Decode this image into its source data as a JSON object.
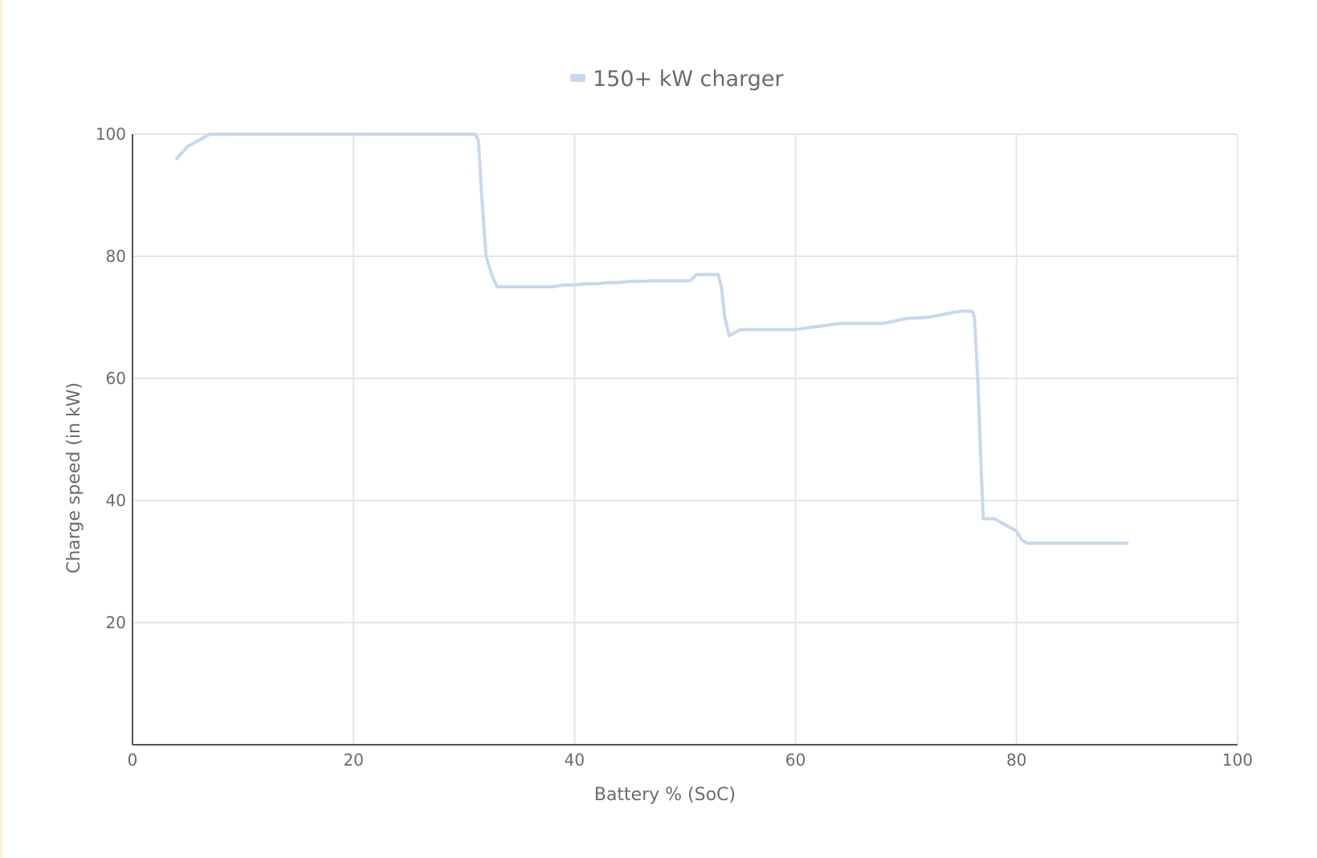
{
  "chart_data": {
    "type": "line",
    "xlabel": "Battery % (SoC)",
    "ylabel": "Charge speed (in kW)",
    "xlim": [
      0,
      100
    ],
    "ylim": [
      0,
      100
    ],
    "x_ticks": [
      0,
      20,
      40,
      60,
      80,
      100
    ],
    "y_ticks": [
      20,
      40,
      60,
      80,
      100
    ],
    "x_tick_labels": [
      "0",
      "20",
      "40",
      "60",
      "80",
      "100"
    ],
    "y_tick_labels": [
      "20",
      "40",
      "60",
      "80",
      "100"
    ],
    "grid": true,
    "legend_position": "top-center",
    "series": [
      {
        "name": "150+ kW charger",
        "color": "#c9d7ee",
        "x": [
          4,
          5,
          6,
          7,
          8,
          10,
          15,
          20,
          25,
          30,
          31,
          31.3,
          31.6,
          32,
          32.5,
          33,
          34,
          36,
          38,
          39,
          40,
          41,
          42,
          43,
          44,
          45,
          46,
          47,
          48,
          49,
          50,
          50.5,
          51,
          52,
          53,
          53.3,
          53.6,
          54,
          54.5,
          55,
          56,
          58,
          60,
          62,
          64,
          65,
          66,
          68,
          70,
          72,
          74,
          75,
          76,
          76.2,
          76.5,
          76.8,
          77,
          78,
          79,
          80,
          80.5,
          81,
          82,
          85,
          88,
          90
        ],
        "y": [
          96,
          98,
          99,
          100,
          100,
          100,
          100,
          100,
          100,
          100,
          100,
          99,
          90,
          80,
          77,
          75,
          75,
          75,
          75,
          75.3,
          75.3,
          75.5,
          75.5,
          75.7,
          75.7,
          75.9,
          75.9,
          76,
          76,
          76,
          76,
          76,
          77,
          77,
          77,
          75,
          70,
          67,
          67.5,
          68,
          68,
          68,
          68,
          68.5,
          69,
          69,
          69,
          69,
          69.8,
          70,
          70.7,
          71,
          71,
          70,
          60,
          45,
          37,
          37,
          36,
          35,
          33.5,
          33,
          33,
          33,
          33,
          33
        ]
      }
    ]
  }
}
